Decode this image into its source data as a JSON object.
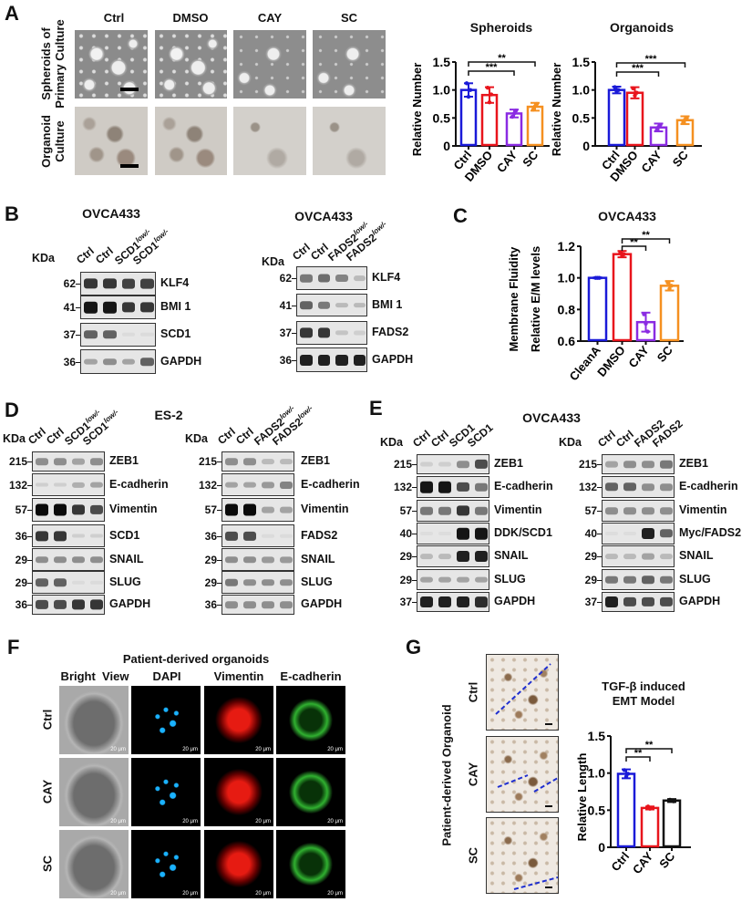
{
  "A": {
    "letter": "A",
    "columns": [
      "Ctrl",
      "DMSO",
      "CAY",
      "SC"
    ],
    "rows": [
      [
        "Spheroids of",
        "Primary Culture"
      ],
      [
        "Organoid",
        "Culture"
      ]
    ]
  },
  "B": {
    "letter": "B",
    "left": {
      "title": "OVCA433",
      "kda": "KDa",
      "lanes": [
        {
          "name": "Ctrl",
          "sup": ""
        },
        {
          "name": "Ctrl",
          "sup": ""
        },
        {
          "name": "SCD1",
          "sup": "low/-"
        },
        {
          "name": "SCD1",
          "sup": "low/-"
        }
      ],
      "rows": [
        {
          "protein": "KLF4",
          "marker": "62",
          "band_intensity": [
            0.8,
            0.8,
            0.75,
            0.75
          ]
        },
        {
          "protein": "BMI 1",
          "marker": "41",
          "band_intensity": [
            0.95,
            0.95,
            0.8,
            0.8
          ]
        },
        {
          "protein": "SCD1",
          "marker": "37",
          "band_intensity": [
            0.6,
            0.6,
            0.05,
            0.05
          ]
        },
        {
          "protein": "GAPDH",
          "marker": "36",
          "band_intensity": [
            0.3,
            0.4,
            0.3,
            0.6
          ]
        }
      ]
    },
    "right": {
      "title": "OVCA433",
      "kda": "KDa",
      "lanes": [
        {
          "name": "Ctrl",
          "sup": ""
        },
        {
          "name": "Ctrl",
          "sup": ""
        },
        {
          "name": "FADS2",
          "sup": "low/-"
        },
        {
          "name": "FADS2",
          "sup": "low/-"
        }
      ],
      "rows": [
        {
          "protein": "KLF4",
          "marker": "62",
          "band_intensity": [
            0.5,
            0.55,
            0.45,
            0.2
          ]
        },
        {
          "protein": "BMI 1",
          "marker": "41",
          "band_intensity": [
            0.6,
            0.5,
            0.2,
            0.2
          ]
        },
        {
          "protein": "FADS2",
          "marker": "37",
          "band_intensity": [
            0.8,
            0.8,
            0.15,
            0.1
          ]
        },
        {
          "protein": "GAPDH",
          "marker": "36",
          "band_intensity": [
            0.9,
            0.9,
            0.9,
            0.9
          ]
        }
      ]
    }
  },
  "C": {
    "letter": "C"
  },
  "D": {
    "letter": "D",
    "title": "ES-2",
    "left": {
      "kda": "KDa",
      "lanes": [
        {
          "name": "Ctrl",
          "sup": ""
        },
        {
          "name": "Ctrl",
          "sup": ""
        },
        {
          "name": "SCD1",
          "sup": "low/-"
        },
        {
          "name": "SCD1",
          "sup": "low/-"
        }
      ],
      "rows": [
        {
          "protein": "ZEB1",
          "marker": "215",
          "band_intensity": [
            0.4,
            0.4,
            0.3,
            0.4
          ]
        },
        {
          "protein": "E-cadherin",
          "marker": "132",
          "band_intensity": [
            0.1,
            0.1,
            0.25,
            0.3
          ]
        },
        {
          "protein": "Vimentin",
          "marker": "57",
          "band_intensity": [
            1,
            1,
            0.8,
            0.7
          ]
        },
        {
          "protein": "SCD1",
          "marker": "36",
          "band_intensity": [
            0.8,
            0.8,
            0.1,
            0.1
          ]
        },
        {
          "protein": "SNAIL",
          "marker": "29",
          "band_intensity": [
            0.4,
            0.4,
            0.4,
            0.4
          ]
        },
        {
          "protein": "SLUG",
          "marker": "29",
          "band_intensity": [
            0.6,
            0.6,
            0.05,
            0.05
          ]
        },
        {
          "protein": "GAPDH",
          "marker": "36",
          "band_intensity": [
            0.7,
            0.7,
            0.8,
            0.8
          ]
        }
      ]
    },
    "right": {
      "kda": "KDa",
      "lanes": [
        {
          "name": "Ctrl",
          "sup": ""
        },
        {
          "name": "Ctrl",
          "sup": ""
        },
        {
          "name": "FADS2",
          "sup": "low/-"
        },
        {
          "name": "FADS2",
          "sup": "low/-"
        }
      ],
      "rows": [
        {
          "protein": "ZEB1",
          "marker": "215",
          "band_intensity": [
            0.4,
            0.4,
            0.2,
            0.2
          ]
        },
        {
          "protein": "E-cadherin",
          "marker": "132",
          "band_intensity": [
            0.3,
            0.3,
            0.35,
            0.45
          ]
        },
        {
          "protein": "Vimentin",
          "marker": "57",
          "band_intensity": [
            1,
            1,
            0.3,
            0.3
          ]
        },
        {
          "protein": "FADS2",
          "marker": "36",
          "band_intensity": [
            0.7,
            0.7,
            0.05,
            0.05
          ]
        },
        {
          "protein": "SNAIL",
          "marker": "29",
          "band_intensity": [
            0.4,
            0.4,
            0.35,
            0.35
          ]
        },
        {
          "protein": "SLUG",
          "marker": "29",
          "band_intensity": [
            0.5,
            0.4,
            0.4,
            0.4
          ]
        },
        {
          "protein": "GAPDH",
          "marker": "36",
          "band_intensity": [
            0.4,
            0.4,
            0.4,
            0.4
          ]
        }
      ]
    }
  },
  "E": {
    "letter": "E",
    "title": "OVCA433",
    "left": {
      "kda": "KDa",
      "lanes": [
        {
          "name": "Ctrl",
          "sup": ""
        },
        {
          "name": "Ctrl",
          "sup": ""
        },
        {
          "name": "SCD1",
          "sup": ""
        },
        {
          "name": "SCD1",
          "sup": ""
        }
      ],
      "rows": [
        {
          "protein": "ZEB1",
          "marker": "215",
          "band_intensity": [
            0.1,
            0.1,
            0.4,
            0.7
          ]
        },
        {
          "protein": "E-cadherin",
          "marker": "132",
          "band_intensity": [
            0.95,
            0.95,
            0.7,
            0.5
          ]
        },
        {
          "protein": "Vimentin",
          "marker": "57",
          "band_intensity": [
            0.5,
            0.5,
            0.8,
            0.5
          ]
        },
        {
          "protein": "DDK/SCD1",
          "marker": "40",
          "band_intensity": [
            0,
            0,
            0.95,
            0.95
          ]
        },
        {
          "protein": "SNAIL",
          "marker": "29",
          "band_intensity": [
            0.2,
            0.2,
            0.9,
            0.9
          ]
        },
        {
          "protein": "SLUG",
          "marker": "29",
          "band_intensity": [
            0.3,
            0.3,
            0.3,
            0.3
          ]
        },
        {
          "protein": "GAPDH",
          "marker": "37",
          "band_intensity": [
            0.9,
            0.9,
            0.9,
            0.85
          ]
        }
      ]
    },
    "right": {
      "kda": "KDa",
      "lanes": [
        {
          "name": "Ctrl",
          "sup": ""
        },
        {
          "name": "Ctrl",
          "sup": ""
        },
        {
          "name": "FADS2",
          "sup": ""
        },
        {
          "name": "FADS2",
          "sup": ""
        }
      ],
      "rows": [
        {
          "protein": "ZEB1",
          "marker": "215",
          "band_intensity": [
            0.3,
            0.4,
            0.4,
            0.5
          ]
        },
        {
          "protein": "E-cadherin",
          "marker": "132",
          "band_intensity": [
            0.6,
            0.6,
            0.4,
            0.4
          ]
        },
        {
          "protein": "Vimentin",
          "marker": "57",
          "band_intensity": [
            0.4,
            0.4,
            0.4,
            0.4
          ]
        },
        {
          "protein": "Myc/FADS2",
          "marker": "40",
          "band_intensity": [
            0,
            0,
            0.9,
            0.6
          ]
        },
        {
          "protein": "SNAIL",
          "marker": "29",
          "band_intensity": [
            0.2,
            0.2,
            0.3,
            0.2
          ]
        },
        {
          "protein": "SLUG",
          "marker": "29",
          "band_intensity": [
            0.5,
            0.5,
            0.6,
            0.5
          ]
        },
        {
          "protein": "GAPDH",
          "marker": "37",
          "band_intensity": [
            0.9,
            0.7,
            0.7,
            0.7
          ]
        }
      ]
    }
  },
  "F": {
    "letter": "F",
    "title": "Patient-derived organoids",
    "columns": [
      "Bright  View",
      "DAPI",
      "Vimentin",
      "E-cadherin"
    ],
    "rows": [
      "Ctrl",
      "CAY",
      "SC"
    ],
    "scale_label": "20 μm"
  },
  "G": {
    "letter": "G",
    "side_label": "Patient-derived Organoid",
    "rows": [
      "Ctrl",
      "CAY",
      "SC"
    ]
  },
  "chart_data": [
    {
      "type": "bar",
      "title": "Spheroids",
      "ylabel": [
        "Relative Number"
      ],
      "categories": [
        "Ctrl",
        "DMSO",
        "CAY",
        "SC"
      ],
      "values": [
        1.0,
        0.91,
        0.58,
        0.7
      ],
      "errors": [
        0.12,
        0.14,
        0.07,
        0.07
      ],
      "points": [
        [
          1.12,
          0.88,
          1.0
        ],
        [
          1.04,
          0.78,
          0.92
        ],
        [
          0.52,
          0.58,
          0.63
        ],
        [
          0.65,
          0.71,
          0.75
        ]
      ],
      "colors": [
        "#1a1ad8",
        "#e8141c",
        "#8a2be2",
        "#f59020"
      ],
      "ylim": [
        0,
        1.5
      ],
      "yticks": [
        0,
        0.5,
        1.0,
        1.5
      ],
      "ytick_labels": [
        "0",
        "0.5",
        "1.0",
        "1.5"
      ],
      "significance": [
        {
          "from": 0,
          "to": 2,
          "label": "***"
        },
        {
          "from": 0,
          "to": 3,
          "label": "**"
        }
      ]
    },
    {
      "type": "bar",
      "title": "Organoids",
      "ylabel": [
        "Relative Number"
      ],
      "categories": [
        "Ctrl",
        "DMSO",
        "CAY",
        "SC"
      ],
      "values": [
        1.0,
        0.95,
        0.33,
        0.46
      ],
      "errors": [
        0.06,
        0.1,
        0.07,
        0.07
      ],
      "points": [
        [
          1.05,
          0.97,
          1.0
        ],
        [
          1.03,
          0.9,
          0.95
        ],
        [
          0.28,
          0.34,
          0.38
        ],
        [
          0.42,
          0.47,
          0.5
        ]
      ],
      "colors": [
        "#1a1ad8",
        "#e8141c",
        "#8a2be2",
        "#f59020"
      ],
      "ylim": [
        0,
        1.5
      ],
      "yticks": [
        0,
        0.5,
        1.0,
        1.5
      ],
      "ytick_labels": [
        "0",
        "0.5",
        "1.0",
        "1.5"
      ],
      "significance": [
        {
          "from": 0,
          "to": 2,
          "label": "***"
        },
        {
          "from": 0,
          "to": 3,
          "label": "***"
        }
      ]
    },
    {
      "type": "bar",
      "title": "OVCA433",
      "ylabel": [
        "Membrane Fluidity",
        "Relative E/M levels"
      ],
      "categories": [
        "CleanA",
        "DMSO",
        "CAY",
        "SC"
      ],
      "values": [
        1.0,
        1.15,
        0.72,
        0.95
      ],
      "errors": [
        0.003,
        0.02,
        0.06,
        0.03
      ],
      "points": [
        [
          1.0,
          1.0,
          1.0
        ],
        [
          1.16,
          1.14,
          1.15
        ],
        [
          0.77,
          0.71,
          0.66
        ],
        [
          0.97,
          0.93,
          0.95
        ]
      ],
      "colors": [
        "#1a1ad8",
        "#e8141c",
        "#8a2be2",
        "#f59020"
      ],
      "ylim": [
        0.6,
        1.2
      ],
      "yticks": [
        0.6,
        0.8,
        1.0,
        1.2
      ],
      "ytick_labels": [
        "0.6",
        "0.8",
        "1.0",
        "1.2"
      ],
      "significance": [
        {
          "from": 1,
          "to": 2,
          "label": "**"
        },
        {
          "from": 1,
          "to": 3,
          "label": "**"
        }
      ]
    },
    {
      "type": "bar",
      "title": [
        "TGF-β induced",
        "EMT Model"
      ],
      "ylabel": [
        "Relative Length"
      ],
      "categories": [
        "Ctrl",
        "CAY",
        "SC"
      ],
      "values": [
        0.99,
        0.53,
        0.63
      ],
      "errors": [
        0.06,
        0.02,
        0.02
      ],
      "points": [
        [
          1.04,
          0.95,
          0.99
        ],
        [
          0.55,
          0.52,
          0.53
        ],
        [
          0.64,
          0.63,
          0.62
        ]
      ],
      "colors": [
        "#1a1ad8",
        "#e8141c",
        "#111111"
      ],
      "ylim": [
        0,
        1.5
      ],
      "yticks": [
        0,
        0.5,
        1.0,
        1.5
      ],
      "ytick_labels": [
        "0",
        "0.5",
        "1.0",
        "1.5"
      ],
      "significance": [
        {
          "from": 0,
          "to": 1,
          "label": "**"
        },
        {
          "from": 0,
          "to": 2,
          "label": "**"
        }
      ]
    }
  ]
}
